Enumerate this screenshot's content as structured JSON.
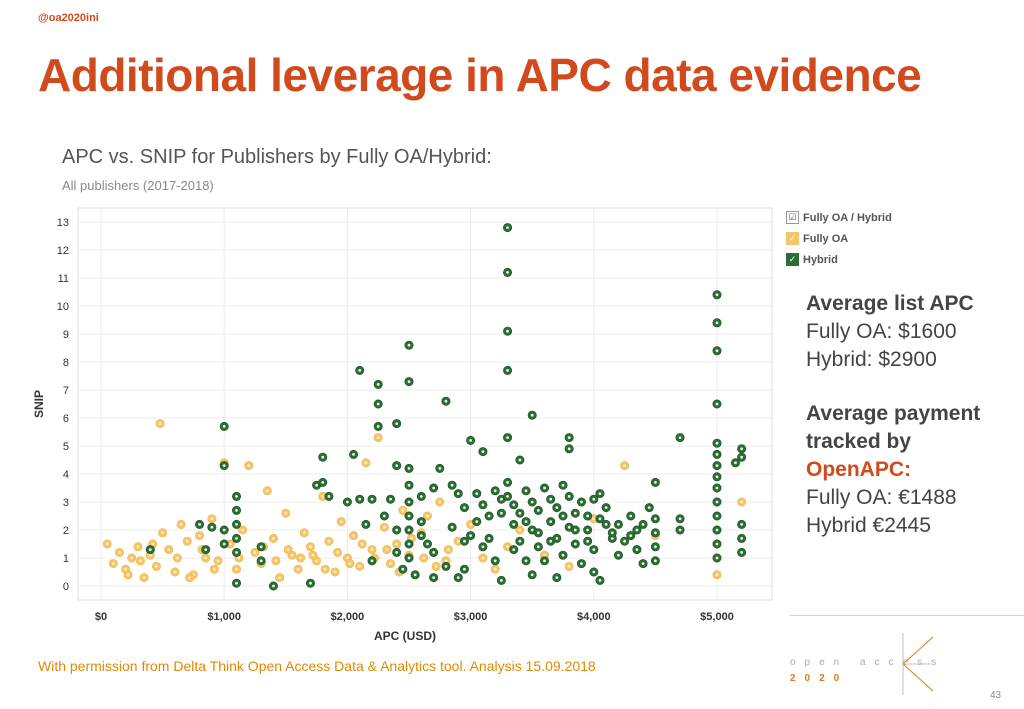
{
  "slide": {
    "handle": "@oa2020ini",
    "title": "Additional leverage in APC data evidence",
    "page_number": "43",
    "footnote": "With permission from Delta Think Open Access Data & Analytics tool. Analysis 15.09.2018"
  },
  "brand": {
    "line1": "open access",
    "line2": "2020"
  },
  "stats": {
    "list_heading": "Average list APC",
    "list_oa": "Fully OA: $1600",
    "list_hybrid": "Hybrid: $2900",
    "payment_heading_1": "Average payment",
    "payment_heading_2": "tracked by",
    "payment_heading_3": "OpenAPC:",
    "payment_oa": "Fully OA: €1488",
    "payment_hybrid": "Hybrid €2445"
  },
  "legend": [
    {
      "label": "Fully OA / Hybrid",
      "mark": "☑"
    },
    {
      "label": "Fully OA",
      "mark": "✓"
    },
    {
      "label": "Hybrid",
      "mark": "✓"
    }
  ],
  "colors": {
    "title": "#d04a1e",
    "fully_oa": "#f5c56a",
    "hybrid": "#2b6e33",
    "footnote": "#e08a00"
  },
  "chart_data": {
    "type": "scatter",
    "title": "APC vs. SNIP for Publishers by Fully OA/Hybrid:",
    "subtitle": "All publishers (2017-2018)",
    "xlabel": "APC (USD)",
    "ylabel": "SNIP",
    "xlim": [
      0,
      5500
    ],
    "ylim": [
      0,
      13
    ],
    "x_ticks": [
      {
        "value": 0,
        "label": "$0"
      },
      {
        "value": 1000,
        "label": "$1,000"
      },
      {
        "value": 2000,
        "label": "$2,000"
      },
      {
        "value": 3000,
        "label": "$3,000"
      },
      {
        "value": 4000,
        "label": "$4,000"
      },
      {
        "value": 5000,
        "label": "$5,000"
      }
    ],
    "y_ticks": [
      0,
      1,
      2,
      3,
      4,
      5,
      6,
      7,
      8,
      9,
      10,
      11,
      12,
      13
    ],
    "grid": true,
    "legend_position": "top-right",
    "series": [
      {
        "name": "Fully OA",
        "color": "#f5c56a",
        "points": [
          [
            50,
            1.5
          ],
          [
            100,
            0.8
          ],
          [
            150,
            1.2
          ],
          [
            200,
            0.6
          ],
          [
            250,
            1.0
          ],
          [
            300,
            1.4
          ],
          [
            350,
            0.3
          ],
          [
            400,
            1.1
          ],
          [
            450,
            0.7
          ],
          [
            500,
            1.9
          ],
          [
            550,
            1.3
          ],
          [
            600,
            0.5
          ],
          [
            650,
            2.2
          ],
          [
            700,
            1.6
          ],
          [
            750,
            0.4
          ],
          [
            800,
            1.8
          ],
          [
            850,
            1.0
          ],
          [
            900,
            2.4
          ],
          [
            950,
            0.9
          ],
          [
            1000,
            4.4
          ],
          [
            1050,
            1.5
          ],
          [
            1100,
            0.6
          ],
          [
            1150,
            2.0
          ],
          [
            1200,
            4.3
          ],
          [
            1250,
            1.2
          ],
          [
            1300,
            0.8
          ],
          [
            1350,
            3.4
          ],
          [
            1400,
            1.7
          ],
          [
            1450,
            0.3
          ],
          [
            1500,
            2.6
          ],
          [
            1550,
            1.1
          ],
          [
            1600,
            0.6
          ],
          [
            1650,
            1.9
          ],
          [
            1700,
            1.4
          ],
          [
            1750,
            0.9
          ],
          [
            1800,
            3.2
          ],
          [
            1850,
            1.6
          ],
          [
            1900,
            0.5
          ],
          [
            1950,
            2.3
          ],
          [
            2000,
            1.0
          ],
          [
            2050,
            1.8
          ],
          [
            2100,
            0.7
          ],
          [
            2150,
            4.4
          ],
          [
            2200,
            1.3
          ],
          [
            2250,
            5.3
          ],
          [
            2300,
            2.1
          ],
          [
            2350,
            0.8
          ],
          [
            2400,
            1.5
          ],
          [
            2450,
            2.7
          ],
          [
            2500,
            1.1
          ],
          [
            2550,
            0.4
          ],
          [
            2600,
            1.9
          ],
          [
            2650,
            2.5
          ],
          [
            2700,
            1.2
          ],
          [
            2750,
            3.0
          ],
          [
            2800,
            0.9
          ],
          [
            2900,
            1.6
          ],
          [
            3000,
            2.2
          ],
          [
            3100,
            1.0
          ],
          [
            3200,
            0.6
          ],
          [
            3300,
            1.4
          ],
          [
            3400,
            2.0
          ],
          [
            3600,
            1.1
          ],
          [
            3800,
            0.7
          ],
          [
            4000,
            2.4
          ],
          [
            4250,
            4.3
          ],
          [
            4500,
            1.8
          ],
          [
            5000,
            0.4
          ],
          [
            5200,
            3.0
          ],
          [
            480,
            5.8
          ],
          [
            220,
            0.4
          ],
          [
            320,
            0.9
          ],
          [
            420,
            1.5
          ],
          [
            620,
            1.0
          ],
          [
            720,
            0.3
          ],
          [
            820,
            1.3
          ],
          [
            920,
            0.6
          ],
          [
            1120,
            1.0
          ],
          [
            1320,
            1.4
          ],
          [
            1420,
            0.9
          ],
          [
            1520,
            1.3
          ],
          [
            1620,
            1.0
          ],
          [
            1720,
            1.1
          ],
          [
            1820,
            0.6
          ],
          [
            1920,
            1.2
          ],
          [
            2020,
            0.8
          ],
          [
            2120,
            1.5
          ],
          [
            2220,
            1.0
          ],
          [
            2320,
            1.3
          ],
          [
            2420,
            0.5
          ],
          [
            2520,
            1.7
          ],
          [
            2620,
            1.0
          ],
          [
            2720,
            0.7
          ],
          [
            2820,
            1.3
          ]
        ]
      },
      {
        "name": "Hybrid",
        "color": "#2b6e33",
        "points": [
          [
            3300,
            12.8
          ],
          [
            3300,
            11.2
          ],
          [
            3300,
            9.1
          ],
          [
            3300,
            7.7
          ],
          [
            5000,
            10.4
          ],
          [
            5000,
            9.4
          ],
          [
            5000,
            8.4
          ],
          [
            5000,
            6.5
          ],
          [
            2500,
            8.6
          ],
          [
            2500,
            7.3
          ],
          [
            2100,
            7.7
          ],
          [
            2250,
            7.2
          ],
          [
            2250,
            6.5
          ],
          [
            2250,
            5.7
          ],
          [
            2800,
            6.6
          ],
          [
            3500,
            6.1
          ],
          [
            1000,
            5.7
          ],
          [
            2400,
            5.8
          ],
          [
            4700,
            5.3
          ],
          [
            3300,
            5.3
          ],
          [
            3000,
            5.2
          ],
          [
            3800,
            5.3
          ],
          [
            1000,
            4.3
          ],
          [
            1800,
            4.6
          ],
          [
            2050,
            4.7
          ],
          [
            2400,
            4.3
          ],
          [
            3100,
            4.8
          ],
          [
            3400,
            4.5
          ],
          [
            3800,
            4.9
          ],
          [
            5200,
            4.9
          ],
          [
            5200,
            4.6
          ],
          [
            5150,
            4.4
          ],
          [
            5000,
            5.1
          ],
          [
            5000,
            4.7
          ],
          [
            5000,
            4.3
          ],
          [
            5000,
            3.9
          ],
          [
            5000,
            3.5
          ],
          [
            5000,
            3.0
          ],
          [
            5000,
            2.5
          ],
          [
            5000,
            2.0
          ],
          [
            5000,
            1.5
          ],
          [
            5000,
            1.0
          ],
          [
            1100,
            3.2
          ],
          [
            1100,
            2.7
          ],
          [
            1100,
            2.2
          ],
          [
            1100,
            1.7
          ],
          [
            1100,
            1.2
          ],
          [
            1100,
            0.1
          ],
          [
            1000,
            2.0
          ],
          [
            1000,
            1.5
          ],
          [
            900,
            2.1
          ],
          [
            800,
            2.2
          ],
          [
            850,
            1.3
          ],
          [
            400,
            1.3
          ],
          [
            1300,
            1.4
          ],
          [
            1300,
            0.9
          ],
          [
            1400,
            0.0
          ],
          [
            1700,
            0.1
          ],
          [
            1750,
            3.6
          ],
          [
            1800,
            3.7
          ],
          [
            1850,
            3.2
          ],
          [
            2000,
            3.0
          ],
          [
            2100,
            3.1
          ],
          [
            2150,
            2.2
          ],
          [
            2200,
            3.1
          ],
          [
            2350,
            3.1
          ],
          [
            2500,
            4.2
          ],
          [
            2500,
            3.6
          ],
          [
            2500,
            3.0
          ],
          [
            2500,
            2.5
          ],
          [
            2500,
            2.0
          ],
          [
            2500,
            1.5
          ],
          [
            2500,
            1.0
          ],
          [
            2550,
            0.4
          ],
          [
            2600,
            3.2
          ],
          [
            2700,
            3.5
          ],
          [
            2750,
            4.2
          ],
          [
            2850,
            3.6
          ],
          [
            2900,
            3.3
          ],
          [
            2950,
            2.8
          ],
          [
            3050,
            3.3
          ],
          [
            3100,
            2.9
          ],
          [
            3150,
            2.5
          ],
          [
            3200,
            3.4
          ],
          [
            3250,
            3.1
          ],
          [
            3300,
            3.7
          ],
          [
            3300,
            3.2
          ],
          [
            3350,
            2.9
          ],
          [
            3400,
            2.6
          ],
          [
            3450,
            3.4
          ],
          [
            3500,
            3.0
          ],
          [
            3550,
            2.7
          ],
          [
            3600,
            3.5
          ],
          [
            3650,
            3.1
          ],
          [
            3700,
            2.8
          ],
          [
            3750,
            3.6
          ],
          [
            3800,
            3.2
          ],
          [
            3850,
            2.6
          ],
          [
            3900,
            3.0
          ],
          [
            3950,
            2.5
          ],
          [
            4000,
            3.1
          ],
          [
            4050,
            3.3
          ],
          [
            4100,
            2.8
          ],
          [
            4200,
            2.2
          ],
          [
            4300,
            2.5
          ],
          [
            4400,
            2.2
          ],
          [
            4500,
            3.7
          ],
          [
            4500,
            2.4
          ],
          [
            4700,
            2.4
          ],
          [
            4700,
            2.0
          ],
          [
            5200,
            2.2
          ],
          [
            5200,
            1.7
          ],
          [
            5200,
            1.2
          ],
          [
            2300,
            2.5
          ],
          [
            2400,
            2.0
          ],
          [
            2600,
            1.8
          ],
          [
            2700,
            1.2
          ],
          [
            2800,
            0.7
          ],
          [
            2900,
            0.3
          ],
          [
            3000,
            1.8
          ],
          [
            3100,
            1.4
          ],
          [
            3200,
            0.9
          ],
          [
            3250,
            0.2
          ],
          [
            3350,
            2.2
          ],
          [
            3400,
            1.6
          ],
          [
            3450,
            0.9
          ],
          [
            3500,
            2.0
          ],
          [
            3550,
            1.4
          ],
          [
            3600,
            0.9
          ],
          [
            3650,
            2.3
          ],
          [
            3700,
            1.7
          ],
          [
            3750,
            1.1
          ],
          [
            3800,
            2.1
          ],
          [
            3850,
            1.5
          ],
          [
            3900,
            0.8
          ],
          [
            3950,
            2.0
          ],
          [
            4000,
            1.3
          ],
          [
            4050,
            0.2
          ],
          [
            4100,
            2.2
          ],
          [
            4150,
            1.7
          ],
          [
            4200,
            1.1
          ],
          [
            4300,
            1.8
          ],
          [
            4350,
            1.3
          ],
          [
            4400,
            0.8
          ],
          [
            4500,
            1.9
          ],
          [
            4500,
            1.4
          ],
          [
            4500,
            0.9
          ],
          [
            4000,
            0.5
          ],
          [
            3700,
            0.3
          ],
          [
            3500,
            0.4
          ],
          [
            2950,
            0.6
          ],
          [
            2700,
            0.3
          ],
          [
            2450,
            0.6
          ],
          [
            2200,
            0.9
          ],
          [
            2400,
            1.2
          ],
          [
            2600,
            2.3
          ],
          [
            2650,
            1.5
          ],
          [
            2850,
            2.1
          ],
          [
            2950,
            1.6
          ],
          [
            3050,
            2.3
          ],
          [
            3150,
            1.7
          ],
          [
            3250,
            2.6
          ],
          [
            3350,
            1.3
          ],
          [
            3450,
            2.3
          ],
          [
            3550,
            1.9
          ],
          [
            3650,
            1.6
          ],
          [
            3750,
            2.5
          ],
          [
            3850,
            2.0
          ],
          [
            3950,
            1.6
          ],
          [
            4050,
            2.4
          ],
          [
            4150,
            1.9
          ],
          [
            4250,
            1.6
          ],
          [
            4350,
            2.0
          ],
          [
            4450,
            2.8
          ]
        ]
      }
    ]
  }
}
